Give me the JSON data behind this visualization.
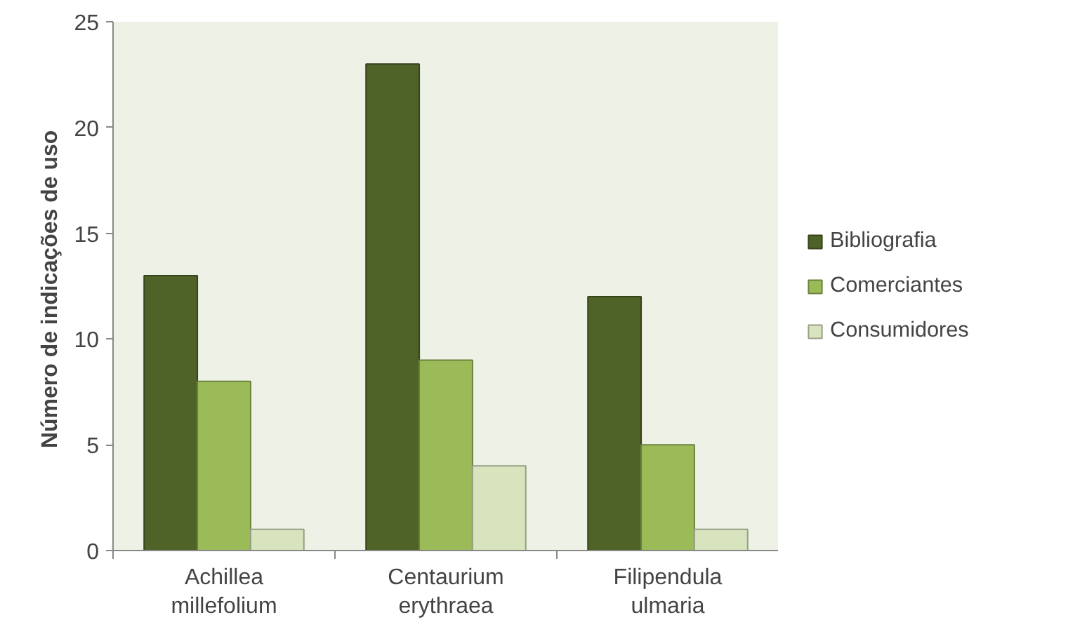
{
  "chart_data": {
    "type": "bar",
    "ylabel": "Número de indicações  de uso",
    "categories": [
      "Achillea millefolium",
      "Centaurium erythraea",
      "Filipendula ulmaria"
    ],
    "series": [
      {
        "name": "Bibliografia",
        "color": "#4f6228",
        "values": [
          13,
          23,
          12
        ]
      },
      {
        "name": "Comerciantes",
        "color": "#9bbb59",
        "values": [
          8,
          9,
          5
        ]
      },
      {
        "name": "Consumidores",
        "color": "#d7e4bd",
        "values": [
          1,
          4,
          1
        ]
      }
    ],
    "ylim": [
      0,
      25
    ],
    "yticks": [
      0,
      5,
      10,
      15,
      20,
      25
    ],
    "grid": false,
    "legend": "right"
  }
}
